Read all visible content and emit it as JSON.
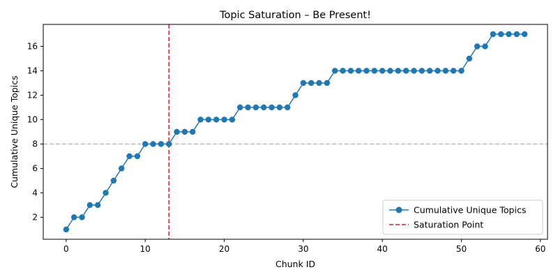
{
  "chart_data": {
    "type": "line",
    "title": "Topic Saturation – Be Present!",
    "xlabel": "Chunk ID",
    "ylabel": "Cumulative Unique Topics",
    "xlim": [
      -2.9,
      60.9
    ],
    "ylim": [
      0.2,
      17.8
    ],
    "xticks": [
      0,
      10,
      20,
      30,
      40,
      50,
      60
    ],
    "yticks": [
      2,
      4,
      6,
      8,
      10,
      12,
      14,
      16
    ],
    "grid": false,
    "legend_position": "lower-right",
    "series": [
      {
        "name": "Cumulative Unique Topics",
        "color": "#1f77b4",
        "marker": "circle",
        "x": [
          0,
          1,
          2,
          3,
          4,
          5,
          6,
          7,
          8,
          9,
          10,
          11,
          12,
          13,
          14,
          15,
          16,
          17,
          18,
          19,
          20,
          21,
          22,
          23,
          24,
          25,
          26,
          27,
          28,
          29,
          30,
          31,
          32,
          33,
          34,
          35,
          36,
          37,
          38,
          39,
          40,
          41,
          42,
          43,
          44,
          45,
          46,
          47,
          48,
          49,
          50,
          51,
          52,
          53,
          54,
          55,
          56,
          57,
          58
        ],
        "y": [
          1,
          2,
          2,
          3,
          3,
          4,
          5,
          6,
          7,
          7,
          8,
          8,
          8,
          8,
          9,
          9,
          9,
          10,
          10,
          10,
          10,
          10,
          11,
          11,
          11,
          11,
          11,
          11,
          11,
          12,
          13,
          13,
          13,
          13,
          14,
          14,
          14,
          14,
          14,
          14,
          14,
          14,
          14,
          14,
          14,
          14,
          14,
          14,
          14,
          14,
          14,
          15,
          16,
          16,
          17,
          17,
          17,
          17,
          17
        ]
      }
    ],
    "reference_lines": {
      "vertical": {
        "name": "Saturation Point",
        "x": 13,
        "color": "#d62728",
        "style": "dashed"
      },
      "horizontal": {
        "y": 8,
        "color": "#bdbdbd",
        "style": "dashed"
      }
    }
  }
}
